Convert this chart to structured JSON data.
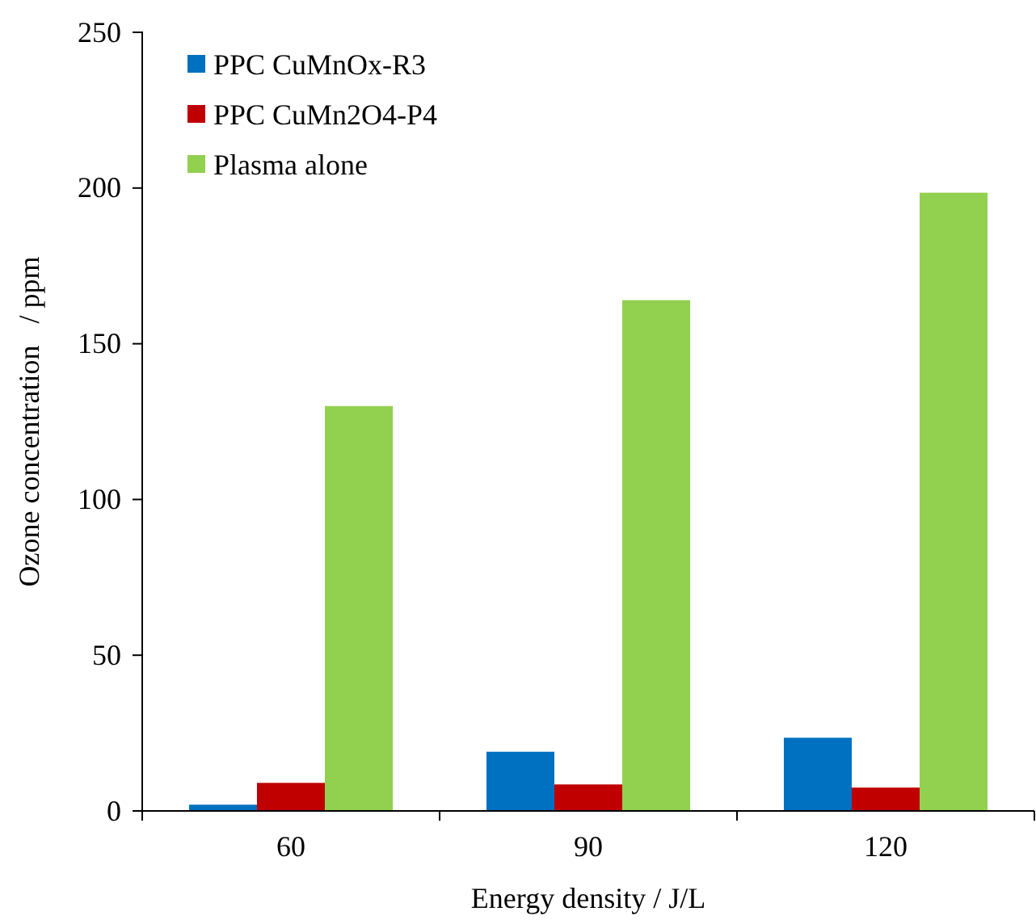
{
  "chart_data": {
    "type": "bar",
    "xlabel": "Energy density / J/L",
    "ylabel": "Ozone concentration   / ppm",
    "categories": [
      "60",
      "90",
      "120"
    ],
    "series": [
      {
        "name": "PPC CuMnOx-R3",
        "color": "#0070c0",
        "values": [
          2,
          19,
          23.5
        ]
      },
      {
        "name": "PPC CuMn2O4-P4",
        "color": "#c00000",
        "values": [
          9,
          8.5,
          7.5
        ]
      },
      {
        "name": "Plasma alone",
        "color": "#92d050",
        "values": [
          130,
          164,
          198.5
        ]
      }
    ],
    "ylim": [
      0,
      250
    ],
    "yticks": [
      0,
      50,
      100,
      150,
      200,
      250
    ],
    "legend": "top left",
    "grid": false
  }
}
